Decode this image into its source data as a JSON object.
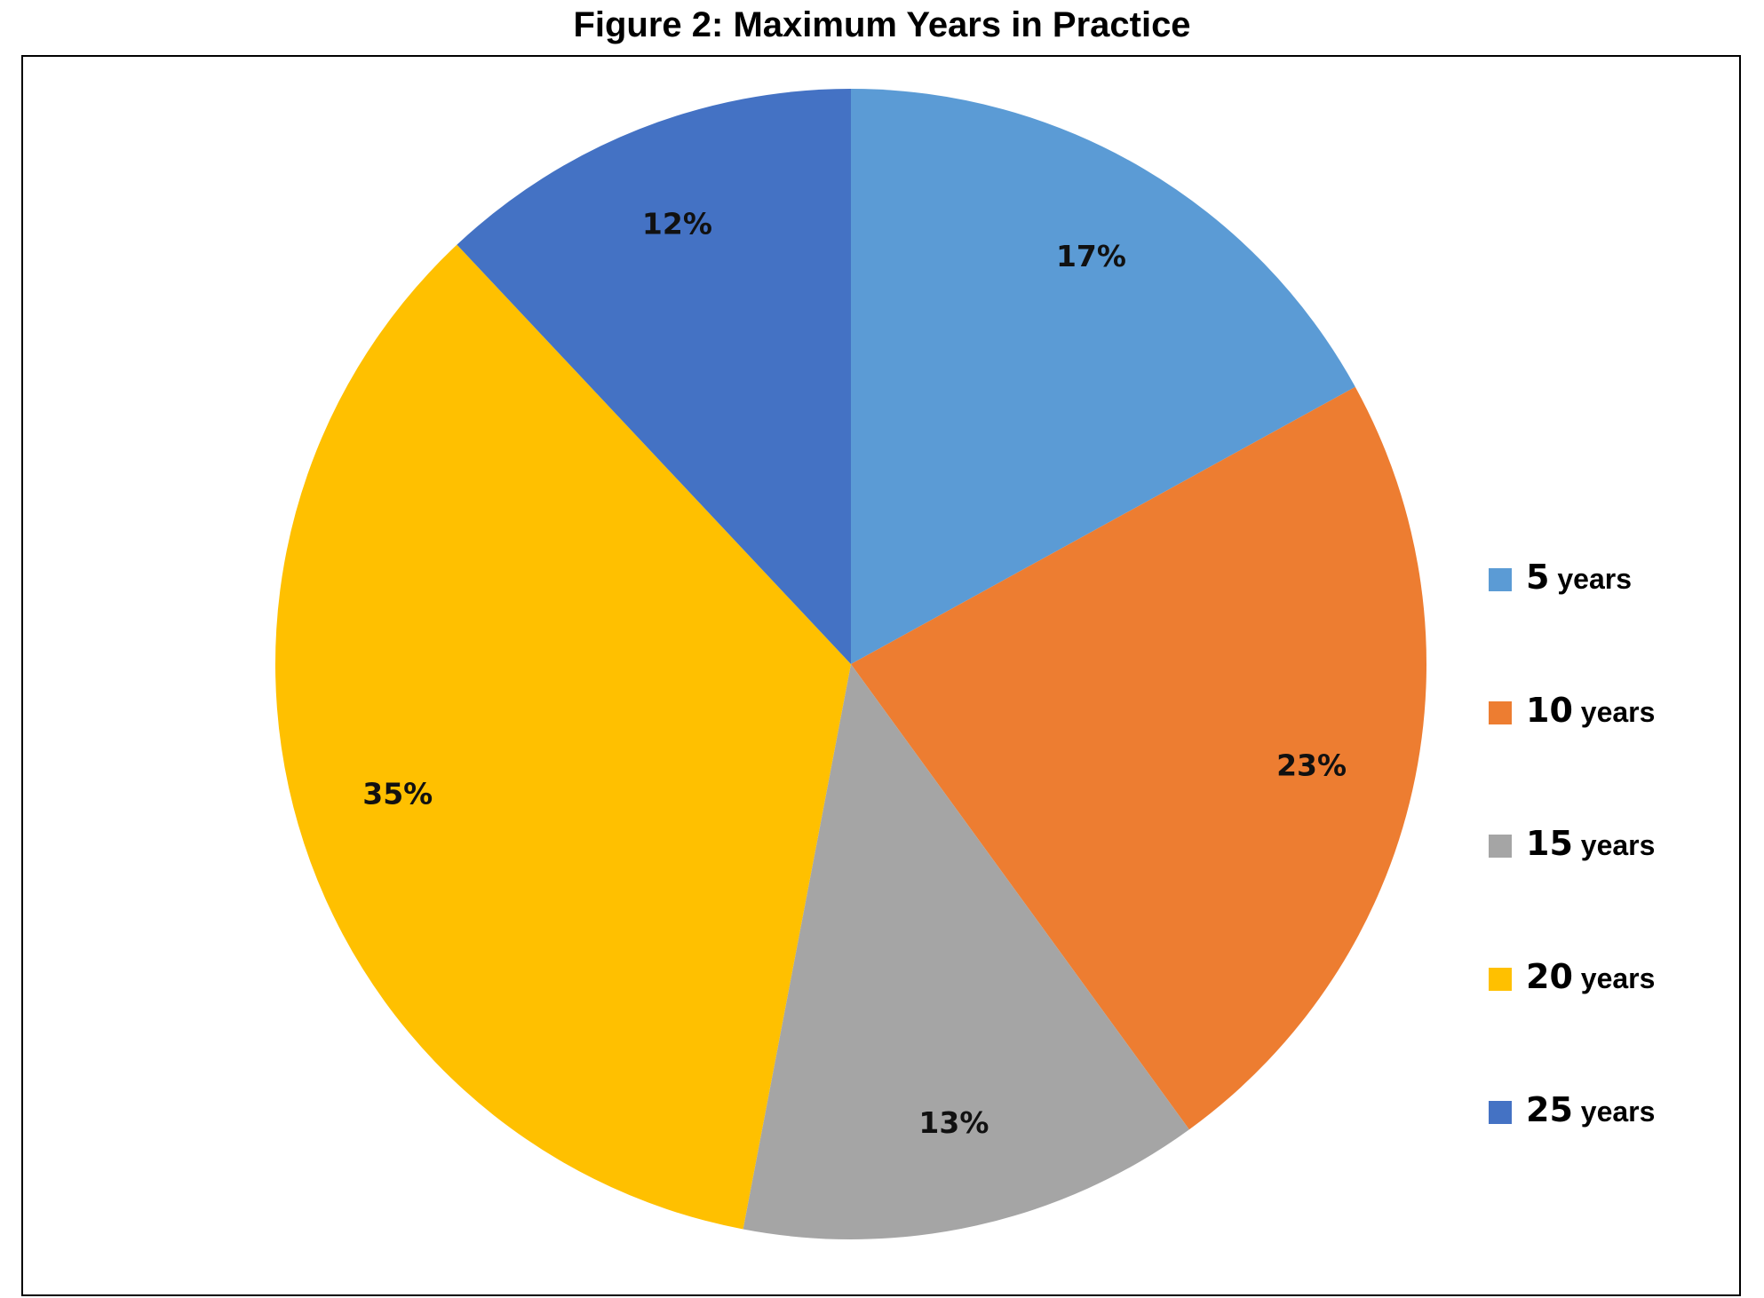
{
  "chart_data": {
    "type": "pie",
    "title": "Figure 2: Maximum Years in Practice",
    "legend_position": "right",
    "slices": [
      {
        "name": "5",
        "unit": "years",
        "value": 17,
        "label": "17%",
        "color": "#5B9BD5"
      },
      {
        "name": "10",
        "unit": "years",
        "value": 23,
        "label": "23%",
        "color": "#ED7D31"
      },
      {
        "name": "15",
        "unit": "years",
        "value": 13,
        "label": "13%",
        "color": "#A5A5A5"
      },
      {
        "name": "20",
        "unit": "years",
        "value": 35,
        "label": "35%",
        "color": "#FFC000"
      },
      {
        "name": "25",
        "unit": "years",
        "value": 12,
        "label": "12%",
        "color": "#4472C4"
      }
    ]
  }
}
